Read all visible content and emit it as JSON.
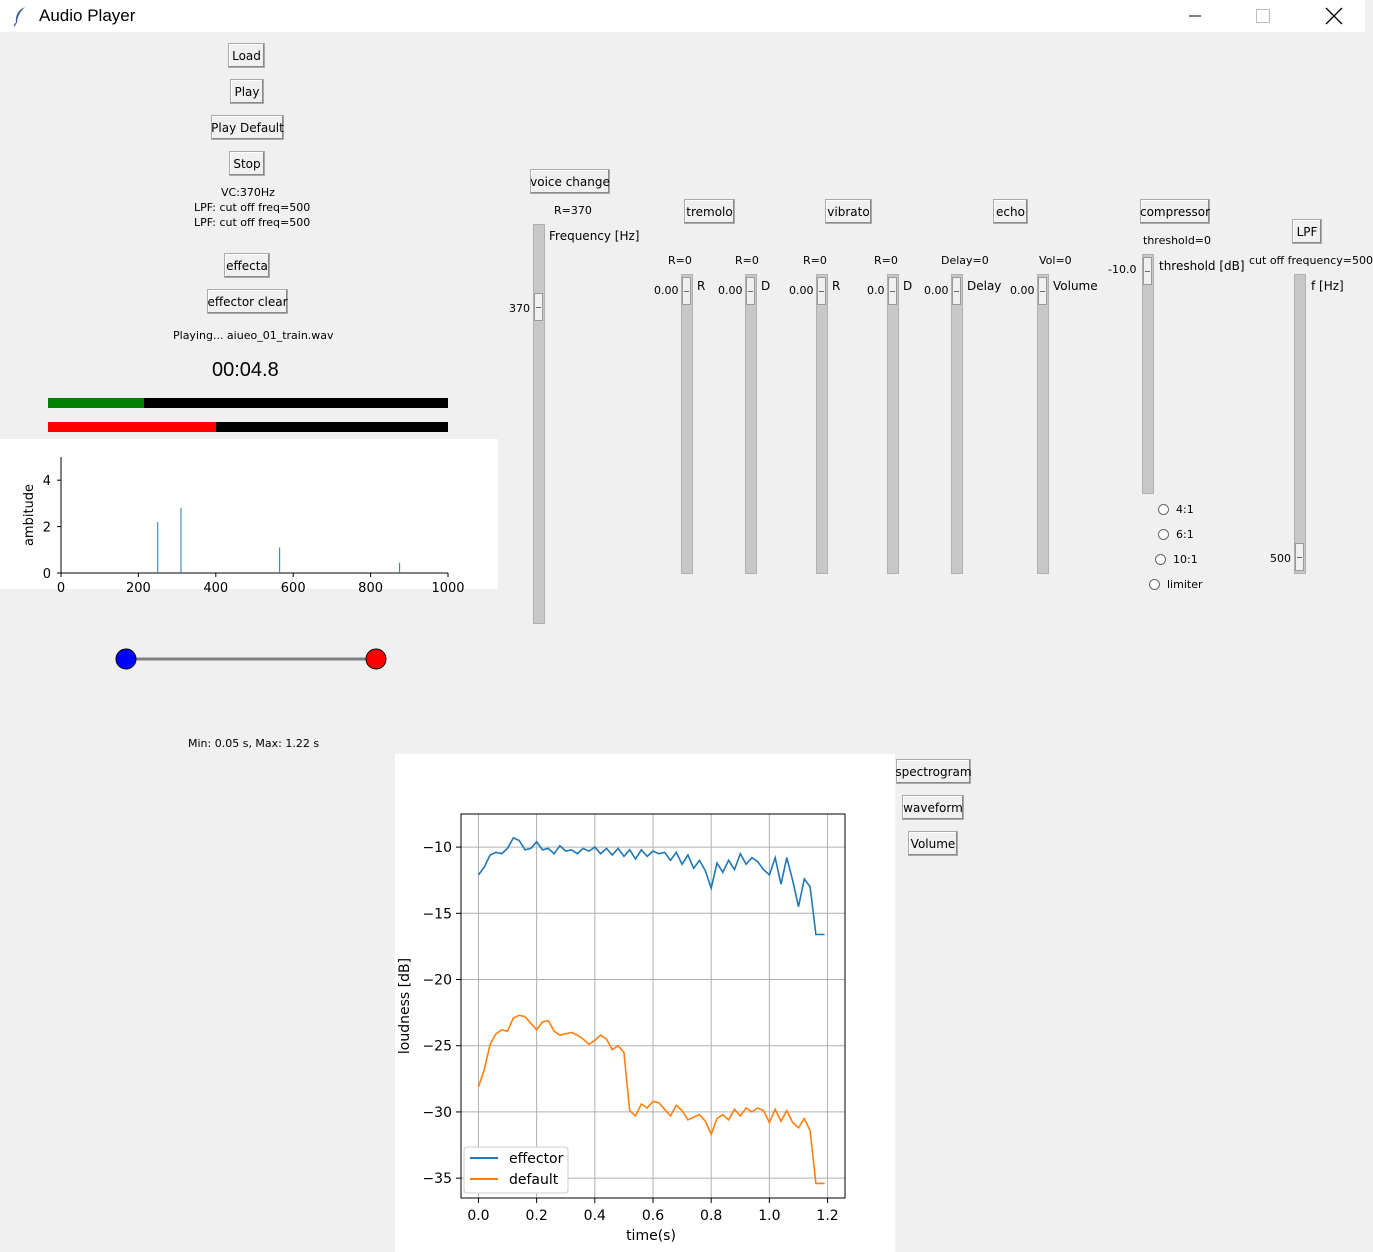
{
  "window": {
    "title": "Audio Player"
  },
  "buttons": {
    "load": "Load",
    "play": "Play",
    "play_default": "Play Default",
    "stop": "Stop",
    "effecta": "effecta",
    "effector_clear": "effector clear",
    "voice_change": "voice change",
    "tremolo": "tremolo",
    "vibrato": "vibrato",
    "echo": "echo",
    "compressor": "compressor",
    "lpf": "LPF",
    "spectrogram": "spectrogram",
    "waveform": "waveform",
    "volume": "Volume"
  },
  "status": {
    "vc": "VC:370Hz",
    "lpf_line1": "LPF: cut off freq=500",
    "lpf_line2": "LPF: cut off freq=500",
    "playing": "Playing... aiueo_01_train.wav",
    "time": "00:04.8",
    "minmax": "Min: 0.05 s, Max: 1.22 s"
  },
  "progress": {
    "green_fraction": 0.24,
    "red_fraction": 0.42,
    "green_color": "#008000",
    "red_color": "#ff0000"
  },
  "range_slider": {
    "min_color": "#0000ff",
    "max_color": "#ff0000"
  },
  "voice_change": {
    "header": "R=370",
    "label": "Frequency [Hz]",
    "value": "370"
  },
  "tremolo": {
    "r": {
      "header": "R=0",
      "label": "R",
      "value": "0.00"
    },
    "d": {
      "header": "R=0",
      "label": "D",
      "value": "0.00"
    }
  },
  "vibrato": {
    "r": {
      "header": "R=0",
      "label": "R",
      "value": "0.00"
    },
    "d": {
      "header": "R=0",
      "label": "D",
      "value": "0.0"
    }
  },
  "echo": {
    "delay": {
      "header": "Delay=0",
      "label": "Delay",
      "value": "0.00"
    },
    "volume": {
      "header": "Vol=0",
      "label": "Volume",
      "value": "0.00"
    }
  },
  "compressor": {
    "header": "threshold=0",
    "label": "threshold [dB]",
    "value": "-10.0",
    "ratios": [
      "4:1",
      "6:1",
      "10:1",
      "limiter"
    ]
  },
  "lpf": {
    "header": "cut off frequency=500",
    "label": "f [Hz]",
    "value": "500"
  },
  "spectrum": {
    "ylabel": "ambitude",
    "yticks": [
      "0",
      "2",
      "4"
    ],
    "xticks": [
      "0",
      "200",
      "400",
      "600",
      "800",
      "1000"
    ],
    "peaks": [
      {
        "x": 250,
        "y": 2.2
      },
      {
        "x": 310,
        "y": 2.8
      },
      {
        "x": 565,
        "y": 1.1
      },
      {
        "x": 875,
        "y": 0.45
      }
    ],
    "color": "#1f77b4"
  },
  "chart_data": {
    "type": "line",
    "xlabel": "time(s)",
    "ylabel": "loudness [dB]",
    "xlim": [
      -0.06,
      1.26
    ],
    "ylim": [
      -36.5,
      -7.5
    ],
    "xticks": [
      "0.0",
      "0.2",
      "0.4",
      "0.6",
      "0.8",
      "1.0",
      "1.2"
    ],
    "yticks": [
      "−10",
      "−15",
      "−20",
      "−25",
      "−30",
      "−35"
    ],
    "grid": true,
    "legend": "bottom-left",
    "series": [
      {
        "name": "effector",
        "color": "#1f77b4",
        "x": [
          0.0,
          0.02,
          0.04,
          0.06,
          0.08,
          0.1,
          0.12,
          0.14,
          0.16,
          0.18,
          0.2,
          0.22,
          0.24,
          0.26,
          0.28,
          0.3,
          0.32,
          0.34,
          0.36,
          0.38,
          0.4,
          0.42,
          0.44,
          0.46,
          0.48,
          0.5,
          0.52,
          0.54,
          0.56,
          0.58,
          0.6,
          0.62,
          0.64,
          0.66,
          0.68,
          0.7,
          0.72,
          0.74,
          0.76,
          0.78,
          0.8,
          0.82,
          0.84,
          0.86,
          0.88,
          0.9,
          0.92,
          0.94,
          0.96,
          0.98,
          1.0,
          1.02,
          1.04,
          1.06,
          1.08,
          1.1,
          1.12,
          1.14,
          1.16,
          1.18,
          1.19
        ],
        "y": [
          -12.1,
          -11.5,
          -10.6,
          -10.4,
          -10.5,
          -10.1,
          -9.3,
          -9.5,
          -10.2,
          -10.1,
          -9.6,
          -10.2,
          -10.1,
          -10.5,
          -9.9,
          -10.3,
          -10.2,
          -10.5,
          -10.1,
          -10.3,
          -10.0,
          -10.5,
          -10.1,
          -10.6,
          -10.1,
          -10.7,
          -10.2,
          -10.9,
          -10.2,
          -10.7,
          -10.3,
          -10.5,
          -10.4,
          -11.0,
          -10.4,
          -11.3,
          -10.6,
          -11.6,
          -11.0,
          -11.8,
          -13.1,
          -11.2,
          -11.9,
          -11.0,
          -11.7,
          -10.5,
          -11.3,
          -10.8,
          -11.1,
          -11.7,
          -12.1,
          -10.8,
          -12.8,
          -10.8,
          -12.5,
          -14.5,
          -12.4,
          -13.0,
          -16.6,
          -16.6,
          -16.6
        ]
      },
      {
        "name": "default",
        "color": "#ff7f0e",
        "x": [
          0.0,
          0.02,
          0.04,
          0.06,
          0.08,
          0.1,
          0.12,
          0.14,
          0.16,
          0.18,
          0.2,
          0.22,
          0.24,
          0.26,
          0.28,
          0.3,
          0.32,
          0.34,
          0.36,
          0.38,
          0.4,
          0.42,
          0.44,
          0.46,
          0.48,
          0.5,
          0.52,
          0.54,
          0.56,
          0.58,
          0.6,
          0.62,
          0.64,
          0.66,
          0.68,
          0.7,
          0.72,
          0.74,
          0.76,
          0.78,
          0.8,
          0.82,
          0.84,
          0.86,
          0.88,
          0.9,
          0.92,
          0.94,
          0.96,
          0.98,
          1.0,
          1.02,
          1.04,
          1.06,
          1.08,
          1.1,
          1.12,
          1.14,
          1.16,
          1.18,
          1.19
        ],
        "y": [
          -28.1,
          -26.8,
          -24.9,
          -24.1,
          -23.8,
          -23.9,
          -22.9,
          -22.7,
          -22.8,
          -23.3,
          -23.8,
          -23.2,
          -23.1,
          -23.9,
          -24.2,
          -24.1,
          -24.0,
          -24.2,
          -24.5,
          -24.9,
          -24.6,
          -24.2,
          -24.5,
          -25.3,
          -25.0,
          -25.5,
          -29.9,
          -30.3,
          -29.4,
          -29.7,
          -29.2,
          -29.3,
          -29.8,
          -30.3,
          -29.5,
          -29.9,
          -30.6,
          -30.4,
          -30.2,
          -30.7,
          -31.7,
          -30.5,
          -30.2,
          -30.6,
          -29.8,
          -30.3,
          -29.7,
          -30.0,
          -29.7,
          -29.9,
          -30.8,
          -29.8,
          -30.7,
          -29.9,
          -30.8,
          -31.2,
          -30.5,
          -31.4,
          -35.4,
          -35.4,
          -35.4
        ]
      }
    ]
  }
}
